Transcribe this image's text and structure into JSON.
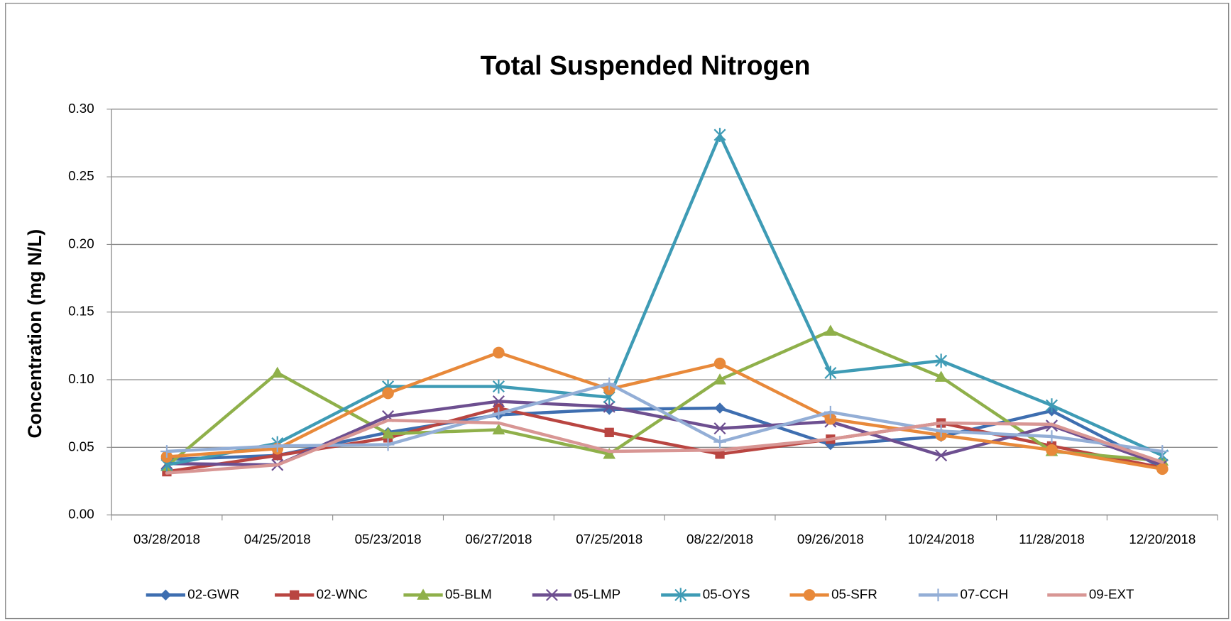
{
  "chart_data": {
    "type": "line",
    "title": "Total Suspended Nitrogen",
    "y_label": "Concentration (mg N/L)",
    "categories": [
      "03/28/2018",
      "04/25/2018",
      "05/23/2018",
      "06/27/2018",
      "07/25/2018",
      "08/22/2018",
      "09/26/2018",
      "10/24/2018",
      "11/28/2018",
      "12/20/2018"
    ],
    "ylim": [
      0,
      0.3
    ],
    "yticks": [
      {
        "value": 0,
        "label": "0.00"
      },
      {
        "value": 0.05,
        "label": "0.05"
      },
      {
        "value": 0.1,
        "label": "0.10"
      },
      {
        "value": 0.15,
        "label": "0.15"
      },
      {
        "value": 0.2,
        "label": "0.20"
      },
      {
        "value": 0.25,
        "label": "0.25"
      },
      {
        "value": 0.3,
        "label": "0.30"
      }
    ],
    "grid": true,
    "legend": "bottom",
    "series": [
      {
        "name": "02-GWR",
        "color": "#3e6eb0",
        "marker": "diamond",
        "values": [
          0.041,
          0.044,
          0.061,
          0.074,
          0.078,
          0.079,
          0.052,
          0.058,
          0.077,
          0.035
        ]
      },
      {
        "name": "02-WNC",
        "color": "#b94541",
        "marker": "square",
        "values": [
          0.032,
          0.044,
          0.057,
          0.079,
          0.061,
          0.045,
          0.056,
          0.068,
          0.051,
          0.035
        ]
      },
      {
        "name": "05-BLM",
        "color": "#8fb04a",
        "marker": "triangle",
        "values": [
          0.036,
          0.105,
          0.06,
          0.063,
          0.045,
          0.1,
          0.136,
          0.102,
          0.047,
          0.04
        ]
      },
      {
        "name": "05-LMP",
        "color": "#6d4f90",
        "marker": "x",
        "values": [
          0.038,
          0.037,
          0.073,
          0.084,
          0.08,
          0.064,
          0.069,
          0.044,
          0.066,
          0.037
        ]
      },
      {
        "name": "05-OYS",
        "color": "#3e9bb5",
        "marker": "star",
        "values": [
          0.037,
          0.053,
          0.095,
          0.095,
          0.087,
          0.281,
          0.105,
          0.114,
          0.081,
          0.044
        ]
      },
      {
        "name": "05-SFR",
        "color": "#e8893a",
        "marker": "circle",
        "values": [
          0.043,
          0.049,
          0.09,
          0.12,
          0.093,
          0.112,
          0.071,
          0.059,
          0.048,
          0.034
        ]
      },
      {
        "name": "07-CCH",
        "color": "#93aed6",
        "marker": "plus",
        "values": [
          0.047,
          0.051,
          0.052,
          0.075,
          0.097,
          0.054,
          0.076,
          0.062,
          0.058,
          0.047
        ]
      },
      {
        "name": "09-EXT",
        "color": "#d89694",
        "marker": "none",
        "values": [
          0.031,
          0.037,
          0.07,
          0.068,
          0.047,
          0.048,
          0.056,
          0.068,
          0.067,
          0.039
        ]
      }
    ]
  }
}
